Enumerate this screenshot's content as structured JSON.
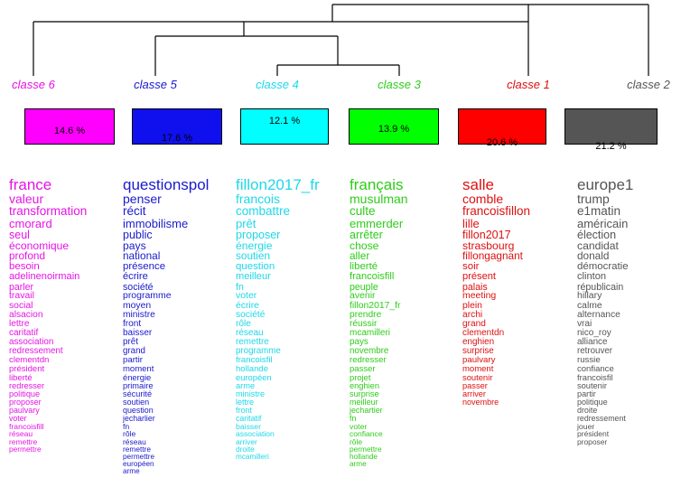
{
  "classes": [
    {
      "label": "classe 6",
      "percent": "14.6 %",
      "color": "#ff00ff",
      "text_color": "#e614e6",
      "words": [
        "france",
        "valeur",
        "transformation",
        "cmorard",
        "seul",
        "économique",
        "profond",
        "besoin",
        "adelinenoirmain",
        "parler",
        "travail",
        "social",
        "alsacion",
        "lettre",
        "caritatif",
        "association",
        "redressement",
        "clementdn",
        "président",
        "liberté",
        "redresser",
        "politique",
        "proposer",
        "paulvary",
        "voter",
        "francoisfill",
        "réseau",
        "remettre",
        "permettre"
      ]
    },
    {
      "label": "classe 5",
      "percent": "17.6 %",
      "color": "#1010ee",
      "text_color": "#1a1acc",
      "words": [
        "questionspol",
        "penser",
        "récit",
        "immobilisme",
        "public",
        "pays",
        "national",
        "présence",
        "écrire",
        "société",
        "programme",
        "moyen",
        "ministre",
        "front",
        "baisser",
        "prêt",
        "grand",
        "partir",
        "moment",
        "énergie",
        "primaire",
        "sécurité",
        "soutien",
        "question",
        "jecharlier",
        "fn",
        "rôle",
        "réseau",
        "remettre",
        "permettre",
        "européen",
        "arme"
      ]
    },
    {
      "label": "classe 4",
      "percent": "12.1 %",
      "color": "#00ffff",
      "text_color": "#1ed8e8",
      "words": [
        "fillon2017_fr",
        "francois",
        "combattre",
        "prêt",
        "proposer",
        "énergie",
        "soutien",
        "question",
        "meilleur",
        "fn",
        "voter",
        "écrire",
        "société",
        "rôle",
        "réseau",
        "remettre",
        "programme",
        "francoisfil",
        "hollande",
        "européen",
        "arme",
        "ministre",
        "lettre",
        "front",
        "caritatif",
        "baisser",
        "association",
        "arriver",
        "droite",
        "mcamilleri"
      ]
    },
    {
      "label": "classe 3",
      "percent": "13.9 %",
      "color": "#00ff00",
      "text_color": "#2ecc1a",
      "words": [
        "français",
        "musulman",
        "culte",
        "emmerder",
        "arrêter",
        "chose",
        "aller",
        "liberté",
        "francoisfill",
        "peuple",
        "avenir",
        "fillon2017_fr",
        "prendre",
        "réussir",
        "mcamilleri",
        "pays",
        "novembre",
        "redresser",
        "passer",
        "projet",
        "enghien",
        "surprise",
        "meilleur",
        "jechartier",
        "fn",
        "voter",
        "confiance",
        "rôle",
        "permettre",
        "hollande",
        "arme"
      ]
    },
    {
      "label": "classe 1",
      "percent": "20.6 %",
      "color": "#ff0000",
      "text_color": "#dd1010",
      "words": [
        "salle",
        "comble",
        "francoisfillon",
        "lille",
        "fillon2017",
        "strasbourg",
        "fillongagnant",
        "soir",
        "présent",
        "palais",
        "meeting",
        "plein",
        "archi",
        "grand",
        "clementdn",
        "enghien",
        "surprise",
        "paulvary",
        "moment",
        "soutenir",
        "passer",
        "arriver",
        "novembre"
      ]
    },
    {
      "label": "classe 2",
      "percent": "21.2 %",
      "color": "#555555",
      "text_color": "#555555",
      "words": [
        "europe1",
        "trump",
        "e1matin",
        "américain",
        "élection",
        "candidat",
        "donald",
        "démocratie",
        "clinton",
        "républicain",
        "hillary",
        "calme",
        "alternance",
        "vrai",
        "nico_roy",
        "alliance",
        "retrouver",
        "russie",
        "confiance",
        "francoisfil",
        "soutenir",
        "partir",
        "politique",
        "droite",
        "redressement",
        "jouer",
        "président",
        "proposer"
      ]
    }
  ]
}
